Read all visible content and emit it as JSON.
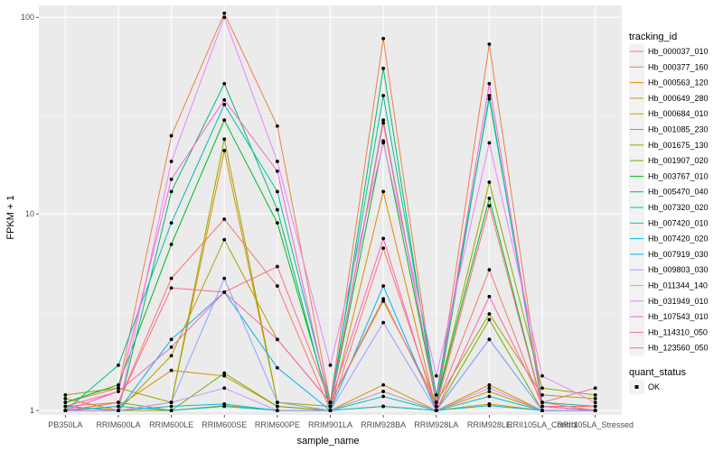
{
  "chart_data": {
    "type": "line",
    "xlabel": "sample_name",
    "ylabel": "FPKM + 1",
    "y_scale": "log10",
    "ylim": [
      0.95,
      115
    ],
    "y_ticks": [
      1,
      10,
      100
    ],
    "y_tick_labels": [
      "1",
      "10",
      "100"
    ],
    "grid": true,
    "panel_background": "#ebebeb",
    "legend_position": "right",
    "categories": [
      "PB350LA",
      "RRIM600LA",
      "RRIM600LE",
      "RRIM600SE",
      "RRIM600PE",
      "RRIM901LA",
      "RRIM928BA",
      "RRIM928LA",
      "RRIM928LE",
      "RRII105LA_Control",
      "RRII105LA_Stressed"
    ],
    "legend_title": "tracking_id",
    "series": [
      {
        "name": "Hb_000037_010",
        "color": "#f8766d",
        "values": [
          1.05,
          1.1,
          4.7,
          9.4,
          4.3,
          1.0,
          6.7,
          1.05,
          5.2,
          1.05,
          1.0
        ]
      },
      {
        "name": "Hb_000377_160",
        "color": "#ef7f49",
        "values": [
          1.1,
          1.3,
          25.0,
          105.0,
          28.0,
          1.1,
          78.0,
          1.1,
          73.0,
          1.1,
          1.0
        ]
      },
      {
        "name": "Hb_000563_120",
        "color": "#e48800",
        "values": [
          1.0,
          1.0,
          1.1,
          21.0,
          1.1,
          1.0,
          13.0,
          1.0,
          1.35,
          1.0,
          1.0
        ]
      },
      {
        "name": "Hb_000649_280",
        "color": "#d69100",
        "values": [
          1.0,
          1.05,
          1.6,
          1.5,
          1.05,
          1.0,
          1.35,
          1.0,
          1.25,
          1.0,
          1.0
        ]
      },
      {
        "name": "Hb_000684_010",
        "color": "#c49a00",
        "values": [
          1.15,
          1.0,
          1.0,
          1.06,
          1.0,
          1.0,
          1.05,
          1.0,
          1.08,
          1.0,
          1.0
        ]
      },
      {
        "name": "Hb_001085_230",
        "color": "#aea200",
        "values": [
          1.0,
          1.0,
          1.9,
          7.4,
          2.3,
          1.1,
          3.6,
          1.1,
          3.1,
          1.2,
          1.15
        ]
      },
      {
        "name": "Hb_001675_130",
        "color": "#91aa00",
        "values": [
          1.2,
          1.3,
          1.1,
          24.0,
          1.1,
          1.05,
          30.0,
          1.1,
          14.5,
          1.3,
          1.2
        ]
      },
      {
        "name": "Hb_001907_020",
        "color": "#6ab100",
        "values": [
          1.0,
          1.1,
          1.0,
          1.55,
          1.05,
          1.0,
          1.25,
          1.0,
          2.9,
          1.0,
          1.0
        ]
      },
      {
        "name": "Hb_003767_010",
        "color": "#00b81f",
        "values": [
          1.1,
          1.35,
          7.0,
          30.0,
          9.0,
          1.05,
          23.5,
          1.1,
          12.0,
          1.05,
          1.0
        ]
      },
      {
        "name": "Hb_005470_040",
        "color": "#00bb6d",
        "values": [
          1.05,
          1.0,
          13.0,
          46.0,
          10.5,
          1.0,
          55.0,
          1.05,
          40.0,
          1.05,
          1.0
        ]
      },
      {
        "name": "Hb_007320_020",
        "color": "#00c0a0",
        "values": [
          1.0,
          1.7,
          9.0,
          36.0,
          13.0,
          1.1,
          40.0,
          1.2,
          38.5,
          1.1,
          1.05
        ]
      },
      {
        "name": "Hb_007420_010",
        "color": "#00c0c4",
        "values": [
          1.0,
          1.05,
          1.0,
          1.05,
          1.0,
          1.0,
          1.18,
          1.0,
          1.18,
          1.0,
          1.0
        ]
      },
      {
        "name": "Hb_007420_020",
        "color": "#00bbde",
        "values": [
          1.0,
          1.0,
          1.05,
          1.08,
          1.0,
          1.0,
          1.05,
          1.0,
          1.06,
          1.0,
          1.0
        ]
      },
      {
        "name": "Hb_007919_030",
        "color": "#00b0f6",
        "values": [
          1.0,
          1.0,
          2.3,
          4.0,
          1.65,
          1.0,
          4.3,
          1.0,
          2.3,
          1.0,
          1.0
        ]
      },
      {
        "name": "Hb_009803_030",
        "color": "#8da4ff",
        "values": [
          1.0,
          1.0,
          1.1,
          4.7,
          1.1,
          1.0,
          2.8,
          1.0,
          2.3,
          1.0,
          1.0
        ]
      },
      {
        "name": "Hb_011344_140",
        "color": "#c897ff",
        "values": [
          1.0,
          1.0,
          1.1,
          1.3,
          1.0,
          1.0,
          1.25,
          1.0,
          1.3,
          1.0,
          1.0
        ]
      },
      {
        "name": "Hb_031949_010",
        "color": "#ea83ff",
        "values": [
          1.0,
          1.0,
          18.5,
          100.0,
          18.5,
          1.7,
          23.0,
          1.5,
          23.0,
          1.5,
          1.1
        ]
      },
      {
        "name": "Hb_107543_010",
        "color": "#fb61d7",
        "values": [
          1.0,
          1.25,
          15.0,
          38.0,
          16.5,
          1.05,
          29.0,
          1.1,
          46.0,
          1.05,
          1.0
        ]
      },
      {
        "name": "Hb_114310_050",
        "color": "#ff62b0",
        "values": [
          1.05,
          1.25,
          2.1,
          4.0,
          2.3,
          1.1,
          7.5,
          1.0,
          3.8,
          1.1,
          1.3
        ]
      },
      {
        "name": "Hb_123560_050",
        "color": "#fc6d83",
        "values": [
          1.0,
          1.1,
          4.2,
          4.0,
          5.4,
          1.1,
          3.7,
          1.05,
          11.0,
          1.05,
          1.05
        ]
      }
    ],
    "shape_legend": {
      "title": "quant_status",
      "items": [
        "OK"
      ]
    }
  }
}
